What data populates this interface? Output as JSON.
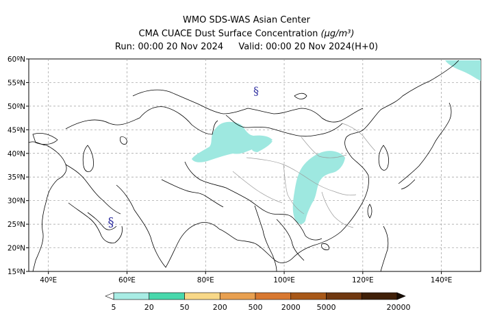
{
  "header": {
    "line1": "WMO SDS-WAS Asian Center",
    "line2_text": "CMA CUACE Dust Surface Concentration",
    "line2_unit": "(μg/m³)",
    "run": "Run: 00:00 20 Nov 2024",
    "valid": "Valid: 00:00 20 Nov 2024(H+0)"
  },
  "map": {
    "lat_labels": [
      "60ºN",
      "55ºN",
      "50ºN",
      "45ºN",
      "40ºN",
      "35ºN",
      "30ºN",
      "25ºN",
      "20ºN",
      "15ºN"
    ],
    "lon_labels": [
      "40ºE",
      "60ºE",
      "80ºE",
      "100ºE",
      "120ºE",
      "140ºE"
    ],
    "lat_values": [
      60,
      55,
      50,
      45,
      40,
      35,
      30,
      25,
      20,
      15
    ],
    "lon_values": [
      40,
      60,
      80,
      100,
      120,
      140
    ],
    "lat_range": [
      15,
      60
    ],
    "lon_range": [
      35,
      150
    ],
    "grid": true,
    "storm_symbol": "§",
    "dust_fill_color": "#9ee8e0"
  },
  "colorbar": {
    "labels": [
      "5",
      "20",
      "50",
      "200",
      "500",
      "2000",
      "5000",
      "20000"
    ],
    "colors": [
      "#a8ece4",
      "#48d8ac",
      "#f8d888",
      "#e8a050",
      "#d87830",
      "#a85818",
      "#703810",
      "#402008"
    ]
  }
}
